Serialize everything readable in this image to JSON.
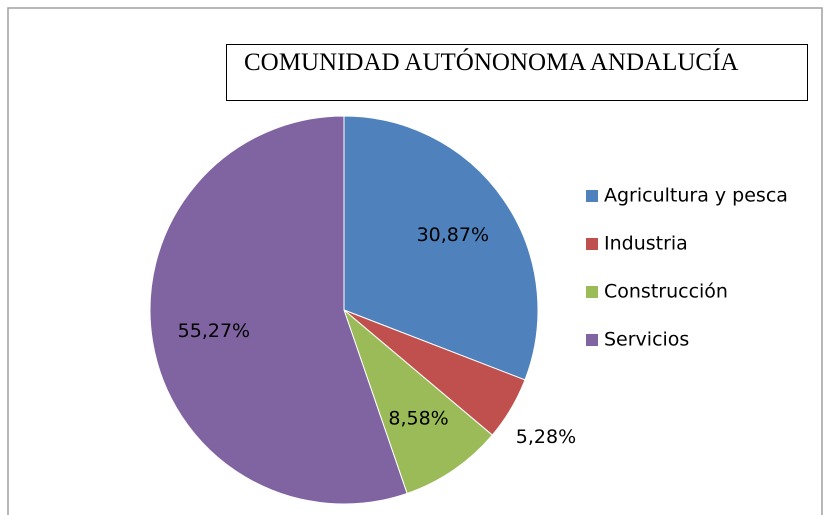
{
  "chart_data": {
    "type": "pie",
    "title": "COMUNIDAD AUTÓNONOMA ANDALUCÍA",
    "categories": [
      "Agricultura y pesca",
      "Industria",
      "Construcción",
      "Servicios"
    ],
    "values": [
      30.87,
      5.28,
      8.58,
      55.27
    ],
    "value_labels": [
      "30,87%",
      "5,28%",
      "8,58%",
      "55,27%"
    ],
    "colors": [
      "#4f81bd",
      "#c0504d",
      "#9bbb59",
      "#8064a2"
    ],
    "legend": "right"
  }
}
